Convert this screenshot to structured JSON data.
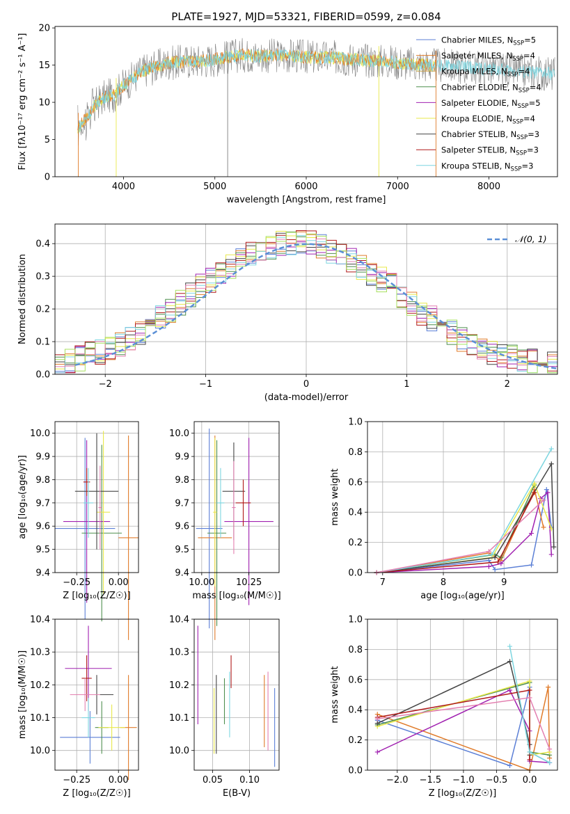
{
  "figure": {
    "title": "PLATE=1927, MJD=53321, FIBERID=0599, z=0.084"
  },
  "colors": {
    "Chabrier MILES": "#5b7fd6",
    "Salpeter MILES": "#e07b2a",
    "Kroupa MILES": "#c8a24a",
    "Chabrier ELODIE": "#4f8f4f",
    "Salpeter ELODIE": "#a020b0",
    "Kroupa ELODIE": "#e8e84a",
    "Chabrier STELIB": "#444444",
    "Salpeter STELIB": "#b01818",
    "Kroupa STELIB": "#7dd6e0",
    "data": "#7f7f7f",
    "gaussian": "#5b8fd6",
    "extra1": "#e37fb0",
    "extra2": "#a8e060"
  },
  "chart_data": [
    {
      "id": "spectrum",
      "type": "line",
      "title": "PLATE=1927, MJD=53321, FIBERID=0599, z=0.084",
      "xlabel": "wavelength [Angstrom, rest frame]",
      "ylabel": "Flux [fλ10⁻¹⁷ erg cm⁻² s⁻¹ A⁻¹]",
      "xlim": [
        3250,
        8750
      ],
      "ylim": [
        0,
        20.2
      ],
      "xticks": [
        "4000",
        "5000",
        "6000",
        "7000",
        "8000"
      ],
      "yticks": [
        "0",
        "5",
        "10",
        "15",
        "20"
      ],
      "grid": false,
      "legend_position": "right",
      "continuum": {
        "x": [
          3500,
          3600,
          3700,
          3800,
          3900,
          4000,
          4100,
          4200,
          4300,
          4500,
          4700,
          4900,
          5100,
          5300,
          5500,
          5700,
          5900,
          6100,
          6300,
          6500,
          6700,
          6900,
          7100,
          7300,
          7500,
          7700,
          7900,
          8100,
          8300,
          8500,
          8700
        ],
        "y": [
          6.5,
          8.0,
          9.8,
          10.8,
          11.0,
          12.3,
          13.2,
          14.2,
          14.6,
          15.3,
          15.5,
          15.6,
          16.0,
          16.4,
          16.2,
          16.3,
          16.2,
          16.0,
          16.0,
          15.8,
          15.6,
          15.5,
          15.2,
          15.0,
          14.9,
          14.8,
          14.6,
          14.4,
          14.2,
          14.0,
          13.8
        ]
      },
      "series": [
        {
          "name": "Chabrier MILES, N_SSP=5",
          "label_main": "Chabrier MILES, N",
          "label_sub": "SSP",
          "label_end": "=5"
        },
        {
          "name": "Salpeter MILES, N_SSP=4",
          "label_main": "Salpeter MILES, N",
          "label_sub": "SSP",
          "label_end": "=4"
        },
        {
          "name": "Kroupa MILES, N_SSP=4",
          "label_main": "Kroupa MILES, N",
          "label_sub": "SSP",
          "label_end": "=4"
        },
        {
          "name": "Chabrier ELODIE, N_SSP=4",
          "label_main": "Chabrier ELODIE, N",
          "label_sub": "SSP",
          "label_end": "=4"
        },
        {
          "name": "Salpeter ELODIE, N_SSP=5",
          "label_main": "Salpeter ELODIE, N",
          "label_sub": "SSP",
          "label_end": "=5"
        },
        {
          "name": "Kroupa ELODIE, N_SSP=4",
          "label_main": "Kroupa ELODIE, N",
          "label_sub": "SSP",
          "label_end": "=4"
        },
        {
          "name": "Chabrier STELIB, N_SSP=3",
          "label_main": "Chabrier STELIB, N",
          "label_sub": "SSP",
          "label_end": "=3"
        },
        {
          "name": "Salpeter STELIB, N_SSP=3",
          "label_main": "Salpeter STELIB, N",
          "label_sub": "SSP",
          "label_end": "=3"
        },
        {
          "name": "Kroupa STELIB, N_SSP=3",
          "label_main": "Kroupa STELIB, N",
          "label_sub": "SSP",
          "label_end": "=3"
        }
      ]
    },
    {
      "id": "residuals",
      "type": "area",
      "xlabel": "(data-model)/error",
      "ylabel": "Normed distribution",
      "xlim": [
        -2.5,
        2.5
      ],
      "ylim": [
        0,
        0.46
      ],
      "xticks": [
        "−2",
        "−1",
        "0",
        "1",
        "2"
      ],
      "yticks": [
        "0.0",
        "0.1",
        "0.2",
        "0.3",
        "0.4"
      ],
      "grid": true,
      "legend": "𝒩(0, 1)",
      "legend_position": "top-right",
      "bins": 50,
      "base": [
        0.03,
        0.04,
        0.05,
        0.06,
        0.07,
        0.08,
        0.09,
        0.11,
        0.13,
        0.15,
        0.17,
        0.19,
        0.22,
        0.24,
        0.27,
        0.29,
        0.31,
        0.33,
        0.35,
        0.37,
        0.38,
        0.39,
        0.4,
        0.4,
        0.4,
        0.4,
        0.39,
        0.38,
        0.37,
        0.35,
        0.33,
        0.31,
        0.29,
        0.27,
        0.24,
        0.22,
        0.19,
        0.17,
        0.15,
        0.13,
        0.11,
        0.09,
        0.08,
        0.07,
        0.06,
        0.05,
        0.04,
        0.04,
        0.03,
        0.03
      ]
    },
    {
      "id": "age-vs-Z",
      "type": "scatter",
      "xlabel": "Z [log₁₀(Z/Z☉)]",
      "ylabel": "age  [log₁₀(age/yr)]",
      "xlim": [
        -0.38,
        0.12
      ],
      "ylim": [
        9.4,
        10.05
      ],
      "xticks": [
        "−0.25",
        "0.00"
      ],
      "yticks": [
        "9.4",
        "9.5",
        "9.6",
        "9.7",
        "9.8",
        "9.9",
        "10.0"
      ],
      "grid": true,
      "points": [
        {
          "x": -0.2,
          "y": 9.59,
          "xerr": 0.18,
          "yerr": 0.39,
          "color": "Chabrier MILES"
        },
        {
          "x": 0.06,
          "y": 9.55,
          "xerr": 0.06,
          "yerr": 0.44,
          "color": "Salpeter MILES"
        },
        {
          "x": -0.1,
          "y": 9.57,
          "xerr": 0.12,
          "yerr": 0.38,
          "color": "Chabrier ELODIE"
        },
        {
          "x": -0.19,
          "y": 9.62,
          "xerr": 0.14,
          "yerr": 0.35,
          "color": "Salpeter ELODIE"
        },
        {
          "x": -0.09,
          "y": 9.66,
          "xerr": 0.04,
          "yerr": 0.35,
          "color": "Kroupa ELODIE"
        },
        {
          "x": -0.13,
          "y": 9.75,
          "xerr": 0.13,
          "yerr": 0.25,
          "color": "Chabrier STELIB"
        },
        {
          "x": -0.19,
          "y": 9.79,
          "xerr": 0.02,
          "yerr": 0.06,
          "color": "Salpeter STELIB"
        },
        {
          "x": -0.18,
          "y": 9.7,
          "xerr": 0.03,
          "yerr": 0.15,
          "color": "Kroupa STELIB"
        },
        {
          "x": -0.11,
          "y": 9.68,
          "xerr": 0.01,
          "yerr": 0.18,
          "color": "extra1"
        }
      ]
    },
    {
      "id": "age-vs-mass",
      "type": "scatter",
      "xlabel": "mass [log₁₀(M/M☉)]",
      "ylabel": "",
      "xlim": [
        9.96,
        10.41
      ],
      "ylim": [
        9.4,
        10.05
      ],
      "xticks": [
        "10.00",
        "10.25"
      ],
      "yticks": [
        "9.4",
        "9.5",
        "9.6",
        "9.7",
        "9.8",
        "9.9",
        "10.0"
      ],
      "grid": true,
      "points": [
        {
          "x": 10.04,
          "y": 9.59,
          "xerr": 0.07,
          "yerr": 0.43,
          "color": "Chabrier MILES"
        },
        {
          "x": 10.07,
          "y": 9.55,
          "xerr": 0.09,
          "yerr": 0.44,
          "color": "Salpeter MILES"
        },
        {
          "x": 10.08,
          "y": 9.57,
          "xerr": 0.05,
          "yerr": 0.4,
          "color": "Chabrier ELODIE"
        },
        {
          "x": 10.25,
          "y": 9.62,
          "xerr": 0.13,
          "yerr": 0.36,
          "color": "Salpeter ELODIE"
        },
        {
          "x": 10.07,
          "y": 9.66,
          "xerr": 0.01,
          "yerr": 0.32,
          "color": "Kroupa ELODIE"
        },
        {
          "x": 10.17,
          "y": 9.75,
          "xerr": 0.06,
          "yerr": 0.21,
          "color": "Chabrier STELIB"
        },
        {
          "x": 10.22,
          "y": 9.7,
          "xerr": 0.04,
          "yerr": 0.1,
          "color": "Salpeter STELIB"
        },
        {
          "x": 10.1,
          "y": 9.7,
          "xerr": 0.02,
          "yerr": 0.15,
          "color": "Kroupa STELIB"
        },
        {
          "x": 10.17,
          "y": 9.68,
          "xerr": 0.01,
          "yerr": 0.2,
          "color": "extra1"
        }
      ]
    },
    {
      "id": "weight-vs-age",
      "type": "line",
      "xlabel": "age  [log₁₀(age/yr)]",
      "ylabel": "mass weight",
      "xlim": [
        6.75,
        9.88
      ],
      "ylim": [
        0,
        1.0
      ],
      "xticks": [
        "7",
        "8",
        "9"
      ],
      "yticks": [
        "0.0",
        "0.2",
        "0.4",
        "0.6",
        "0.8",
        "1.0"
      ],
      "grid": true,
      "series": [
        {
          "color": "Chabrier MILES",
          "x": [
            6.9,
            8.75,
            8.85,
            9.45,
            9.7,
            9.78
          ],
          "y": [
            0.0,
            0.08,
            0.02,
            0.05,
            0.55,
            0.3
          ]
        },
        {
          "color": "Salpeter MILES",
          "x": [
            6.9,
            8.75,
            8.95,
            9.5,
            9.65
          ],
          "y": [
            0.0,
            0.13,
            0.08,
            0.55,
            0.3
          ]
        },
        {
          "color": "Chabrier ELODIE",
          "x": [
            6.9,
            8.85,
            8.95,
            9.5
          ],
          "y": [
            0.0,
            0.12,
            0.1,
            0.58
          ]
        },
        {
          "color": "Salpeter ELODIE",
          "x": [
            6.9,
            8.75,
            8.95,
            9.45,
            9.6,
            9.72,
            9.78
          ],
          "y": [
            0.0,
            0.04,
            0.06,
            0.26,
            0.49,
            0.53,
            0.12
          ]
        },
        {
          "color": "Kroupa ELODIE",
          "x": [
            6.9,
            8.8,
            9.5,
            9.78
          ],
          "y": [
            0.0,
            0.1,
            0.59,
            0.29
          ]
        },
        {
          "color": "Chabrier STELIB",
          "x": [
            6.9,
            8.85,
            9.78,
            9.82
          ],
          "y": [
            0.0,
            0.1,
            0.72,
            0.17
          ]
        },
        {
          "color": "Salpeter STELIB",
          "x": [
            6.9,
            8.9,
            9.5
          ],
          "y": [
            0.0,
            0.07,
            0.53
          ]
        },
        {
          "color": "Kroupa STELIB",
          "x": [
            6.9,
            8.8,
            9.78
          ],
          "y": [
            0.0,
            0.12,
            0.82
          ]
        },
        {
          "color": "extra1",
          "x": [
            6.9,
            8.75,
            9.65
          ],
          "y": [
            0.0,
            0.14,
            0.48
          ]
        }
      ]
    },
    {
      "id": "mass-vs-Z",
      "type": "scatter",
      "xlabel": "Z [log₁₀(Z/Z☉)]",
      "ylabel": "mass [log₁₀(M/M☉)]",
      "xlim": [
        -0.38,
        0.12
      ],
      "ylim": [
        9.94,
        10.4
      ],
      "xticks": [
        "−0.25",
        "0.00"
      ],
      "yticks": [
        "10.0",
        "10.1",
        "10.2",
        "10.3",
        "10.4"
      ],
      "grid": true,
      "points": [
        {
          "x": -0.17,
          "y": 10.04,
          "xerr": 0.18,
          "yerr": 0.08,
          "color": "Chabrier MILES"
        },
        {
          "x": 0.06,
          "y": 10.07,
          "xerr": 0.05,
          "yerr": 0.16,
          "color": "Salpeter MILES"
        },
        {
          "x": -0.1,
          "y": 10.07,
          "xerr": 0.04,
          "yerr": 0.08,
          "color": "Chabrier ELODIE"
        },
        {
          "x": -0.18,
          "y": 10.25,
          "xerr": 0.14,
          "yerr": 0.13,
          "color": "Salpeter ELODIE"
        },
        {
          "x": -0.04,
          "y": 10.07,
          "xerr": 0.08,
          "yerr": 0.07,
          "color": "Kroupa ELODIE"
        },
        {
          "x": -0.13,
          "y": 10.17,
          "xerr": 0.1,
          "yerr": 0.06,
          "color": "Chabrier STELIB"
        },
        {
          "x": -0.19,
          "y": 10.22,
          "xerr": 0.03,
          "yerr": 0.07,
          "color": "Salpeter STELIB"
        },
        {
          "x": -0.18,
          "y": 10.1,
          "xerr": 0.04,
          "yerr": 0.06,
          "color": "Kroupa STELIB"
        },
        {
          "x": -0.2,
          "y": 10.17,
          "xerr": 0.09,
          "yerr": 0.05,
          "color": "extra1"
        }
      ]
    },
    {
      "id": "mass-vs-ebv",
      "type": "scatter",
      "xlabel": "E(B-V)",
      "ylabel": "",
      "xlim": [
        0.025,
        0.14
      ],
      "ylim": [
        9.94,
        10.4
      ],
      "xticks": [
        "0.05",
        "0.10"
      ],
      "yticks": [
        "10.0",
        "10.1",
        "10.2",
        "10.3",
        "10.4"
      ],
      "grid": true,
      "points": [
        {
          "x": 0.134,
          "y": 10.07,
          "yerr": 0.12,
          "color": "Chabrier MILES"
        },
        {
          "x": 0.12,
          "y": 10.12,
          "yerr": 0.11,
          "color": "Salpeter MILES"
        },
        {
          "x": 0.066,
          "y": 10.15,
          "yerr": 0.07,
          "color": "Chabrier ELODIE"
        },
        {
          "x": 0.03,
          "y": 10.23,
          "yerr": 0.15,
          "color": "Salpeter ELODIE"
        },
        {
          "x": 0.052,
          "y": 10.09,
          "yerr": 0.1,
          "color": "Kroupa ELODIE"
        },
        {
          "x": 0.055,
          "y": 10.11,
          "yerr": 0.12,
          "color": "Chabrier STELIB"
        },
        {
          "x": 0.075,
          "y": 10.24,
          "yerr": 0.05,
          "color": "Salpeter STELIB"
        },
        {
          "x": 0.073,
          "y": 10.14,
          "yerr": 0.1,
          "color": "Kroupa STELIB"
        },
        {
          "x": 0.125,
          "y": 10.12,
          "yerr": 0.12,
          "color": "extra1"
        }
      ]
    },
    {
      "id": "weight-vs-Z",
      "type": "line",
      "xlabel": "Z [log₁₀(Z/Z☉)]",
      "ylabel": "mass weight",
      "xlim": [
        -2.45,
        0.42
      ],
      "ylim": [
        0,
        1.0
      ],
      "xticks": [
        "−2.0",
        "−1.5",
        "−1.0",
        "−0.5",
        "0.0"
      ],
      "yticks": [
        "0.0",
        "0.2",
        "0.4",
        "0.6",
        "0.8",
        "1.0"
      ],
      "grid": true,
      "series": [
        {
          "color": "Chabrier MILES",
          "x": [
            -2.3,
            -0.3,
            0.0,
            0.0,
            0.3
          ],
          "y": [
            0.33,
            0.03,
            0.55,
            0.12,
            0.05
          ]
        },
        {
          "color": "Salpeter MILES",
          "x": [
            -2.3,
            0.0,
            0.28,
            0.3
          ],
          "y": [
            0.37,
            0.0,
            0.55,
            0.08
          ]
        },
        {
          "color": "Chabrier ELODIE",
          "x": [
            -2.3,
            0.0,
            0.0,
            0.3
          ],
          "y": [
            0.3,
            0.58,
            0.12,
            0.1
          ]
        },
        {
          "color": "Salpeter ELODIE",
          "x": [
            -2.3,
            -0.3,
            0.0,
            0.0,
            0.3
          ],
          "y": [
            0.12,
            0.53,
            0.26,
            0.06,
            0.05
          ]
        },
        {
          "color": "Kroupa ELODIE",
          "x": [
            -2.3,
            0.0,
            0.0,
            0.3
          ],
          "y": [
            0.29,
            0.59,
            0.1,
            0.12
          ]
        },
        {
          "color": "Chabrier STELIB",
          "x": [
            -2.3,
            -0.3,
            0.0,
            0.0
          ],
          "y": [
            0.31,
            0.72,
            0.17,
            0.1
          ]
        },
        {
          "color": "Salpeter STELIB",
          "x": [
            -2.3,
            0.0,
            0.0
          ],
          "y": [
            0.35,
            0.53,
            0.07
          ]
        },
        {
          "color": "Kroupa STELIB",
          "x": [
            -0.3,
            0.0,
            0.3
          ],
          "y": [
            0.82,
            0.12,
            0.05
          ]
        },
        {
          "color": "extra1",
          "x": [
            -2.3,
            0.0,
            0.3
          ],
          "y": [
            0.34,
            0.48,
            0.14
          ]
        }
      ]
    }
  ]
}
